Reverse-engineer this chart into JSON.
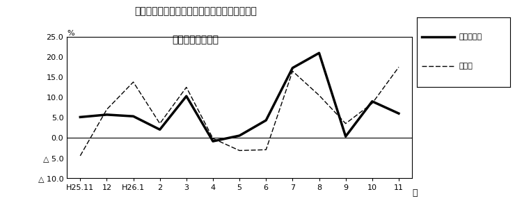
{
  "title_line1": "第２図　所定外労働時間　対前年同月比の推移",
  "title_line2": "（規樯５人以上）",
  "xlabel": "月",
  "ylabel": "%",
  "x_labels": [
    "H25.11",
    "12",
    "H26.1",
    "2",
    "3",
    "4",
    "5",
    "6",
    "7",
    "8",
    "9",
    "10",
    "11"
  ],
  "series1_name": "調査産業計",
  "series1_values": [
    5.1,
    5.7,
    5.3,
    2.0,
    10.3,
    -0.9,
    0.5,
    4.3,
    17.3,
    21.0,
    0.3,
    9.0,
    6.0
  ],
  "series2_name": "製造業",
  "series2_values": [
    -4.5,
    7.0,
    13.8,
    3.5,
    12.5,
    -0.2,
    -3.2,
    -3.0,
    16.5,
    10.5,
    3.5,
    8.5,
    17.5
  ],
  "ylim_min": -10.0,
  "ylim_max": 25.0,
  "yticks": [
    25.0,
    20.0,
    15.0,
    10.0,
    5.0,
    0.0,
    -5.0,
    -10.0
  ],
  "ytick_labels": [
    "25.0",
    "20.0",
    "15.0",
    "10.0",
    "5.0",
    "0.0",
    "△ 5.0",
    "△ 10.0"
  ],
  "line1_color": "#000000",
  "line2_color": "#000000",
  "bg_color": "#ffffff"
}
